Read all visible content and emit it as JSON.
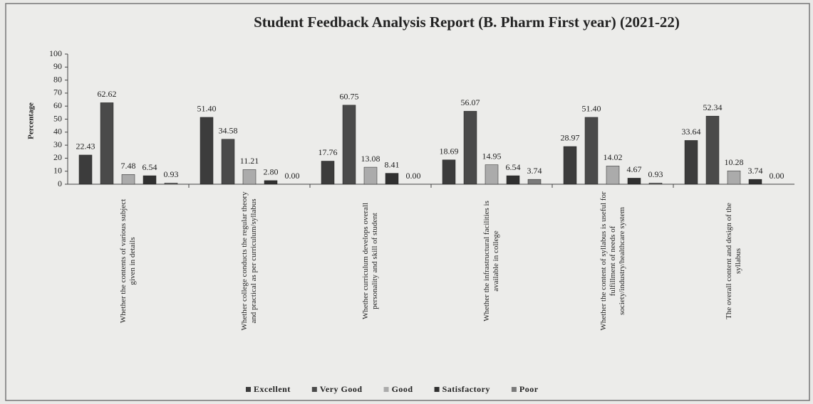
{
  "chart_data": {
    "type": "bar",
    "title": "Student Feedback Analysis  Report (B. Pharm First year) (2021-22)",
    "y_label": "Percentage",
    "categories": [
      "Whether the contents of various subject given in details",
      "Whether college conducts the regular theory and practical as per curriculum/syllabus",
      "Whether curriculum develops overall personality and skill of student",
      "Whether the infrastructural facilities is available in college",
      "Whether the content of syllabus is useful for fulfillment of needs of society/industry/healthcare system",
      "The overall content and design of the syllabus"
    ],
    "series": [
      {
        "name": "Excellent",
        "color": "#3c3c3c",
        "values": [
          22.43,
          51.4,
          17.76,
          18.69,
          28.97,
          33.64
        ],
        "value_labels": [
          "22.43",
          "51.40",
          "17.76",
          "18.69",
          "28.97",
          "33.64"
        ]
      },
      {
        "name": "Very Good",
        "color": "#4a4a4a",
        "values": [
          62.62,
          34.58,
          60.75,
          56.07,
          51.4,
          52.34
        ],
        "value_labels": [
          "62.62",
          "34.58",
          "60.75",
          "56.07",
          "51.40",
          "52.34"
        ]
      },
      {
        "name": "Good",
        "color": "#ababab",
        "values": [
          7.48,
          11.21,
          13.08,
          14.95,
          14.02,
          10.28
        ],
        "value_labels": [
          "7.48",
          "11.21",
          "13.08",
          "14.95",
          "14.02",
          "10.28"
        ]
      },
      {
        "name": "Satisfactory",
        "color": "#303030",
        "values": [
          6.54,
          2.8,
          8.41,
          6.54,
          4.67,
          3.74
        ],
        "value_labels": [
          "6.54",
          "2.80",
          "8.41",
          "6.54",
          "4.67",
          "3.74"
        ]
      },
      {
        "name": "Poor",
        "color": "#7a7a7a",
        "values": [
          0.93,
          0,
          0,
          3.74,
          0.93,
          0
        ],
        "value_labels": [
          "0.93",
          "0.00",
          "0.00",
          "3.74",
          "0.93",
          "0.00"
        ]
      }
    ],
    "ylim": [
      0,
      100
    ],
    "yticks": [
      0,
      10,
      20,
      30,
      40,
      50,
      60,
      70,
      80,
      90,
      100
    ],
    "legend": "bottom"
  }
}
